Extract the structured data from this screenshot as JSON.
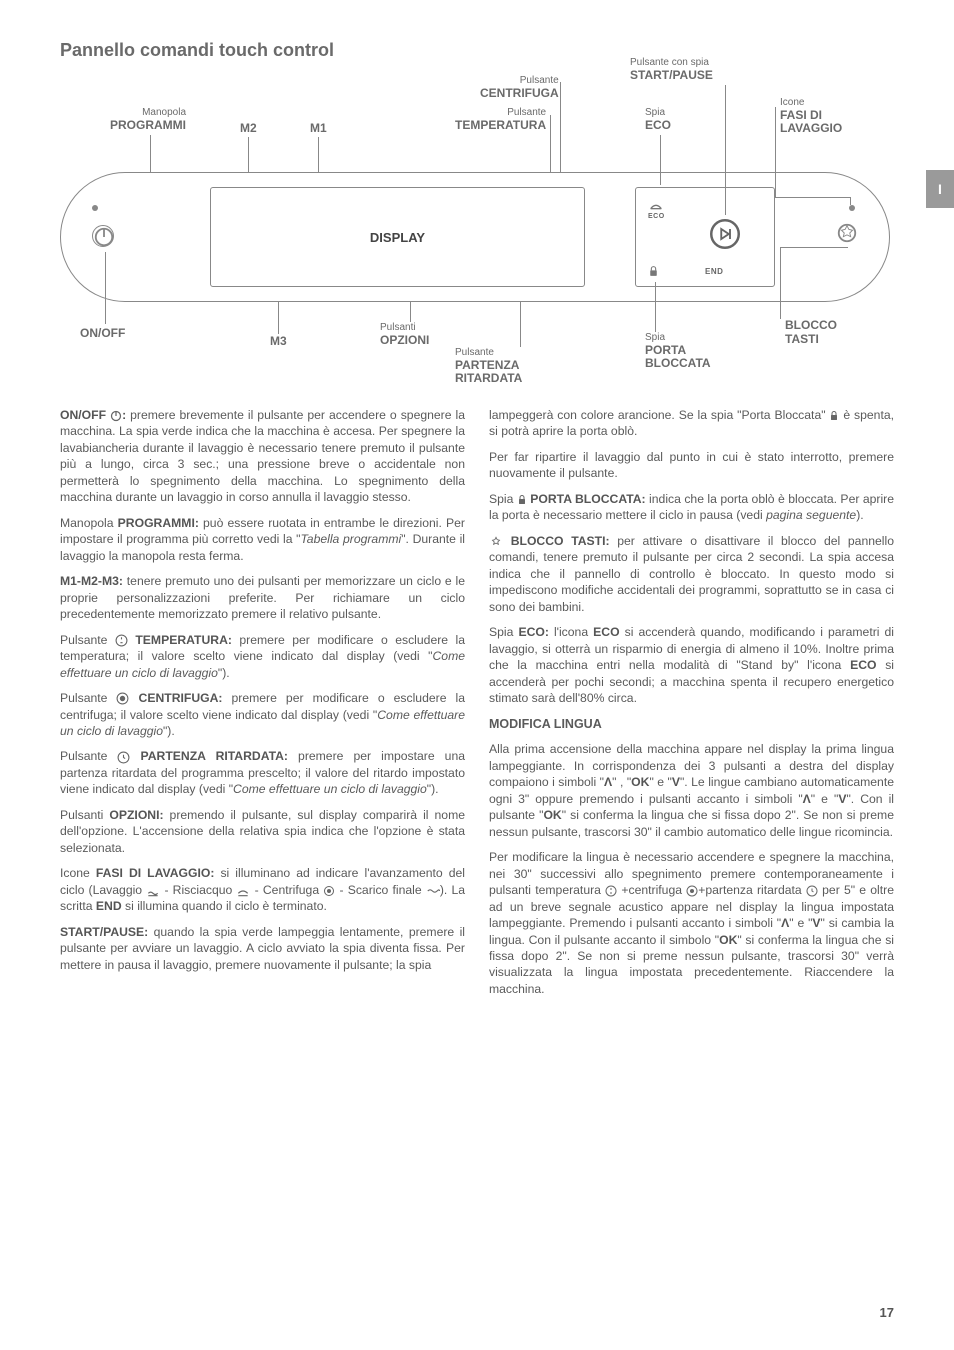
{
  "page": {
    "title": "Pannello comandi touch control",
    "number": "17",
    "tab": "I"
  },
  "diagram": {
    "labels": {
      "programmi_top": "Manopola",
      "programmi": "PROGRAMMI",
      "m1": "M1",
      "m2": "M2",
      "m3": "M3",
      "centrifuga_top": "Pulsante",
      "centrifuga": "CENTRIFUGA",
      "temperatura_top": "Pulsante",
      "temperatura": "TEMPERATURA",
      "display": "DISPLAY",
      "onoff": "ON/OFF",
      "opzioni_top": "Pulsanti",
      "opzioni": "OPZIONI",
      "partenza_top": "Pulsante",
      "partenza": "PARTENZA",
      "ritardata": "RITARDATA",
      "startpause_top": "Pulsante con spia",
      "startpause": "START/PAUSE",
      "eco_top": "Spia",
      "eco": "ECO",
      "fasi_top": "Icone",
      "fasi": "FASI DI",
      "lavaggio": "LAVAGGIO",
      "porta_top": "Spia",
      "porta": "PORTA",
      "bloccata": "BLOCCATA",
      "blocco": "BLOCCO",
      "tasti": "TASTI",
      "end": "END",
      "ecoicon": "ECO"
    }
  },
  "text": {
    "left": [
      {
        "html": "<b>ON/OFF</b> <svg class='inline-icon' width='12' height='12' viewBox='0 0 24 24' fill='none' stroke='#666' stroke-width='2.5'><circle cx='12' cy='12' r='9'/><line x1='12' y1='3' x2='12' y2='12'/></svg><b>:</b> premere brevemente il pulsante per accendere o spegnere la macchina. La spia verde indica che la macchina è accesa. Per spegnere la lavabiancheria durante il lavaggio è necessario tenere premuto il pulsante più a lungo, circa 3 sec.; una pressione breve o accidentale non permetterà lo spegnimento della macchina. Lo spegnimento della macchina durante un lavaggio in corso annulla il lavaggio stesso."
      },
      {
        "html": "Manopola <b>PROGRAMMI:</b> può essere ruotata in entrambe le direzioni. Per impostare il programma più corretto vedi la \"<i>Tabella programmi</i>\". Durante il lavaggio la manopola resta ferma."
      },
      {
        "html": "<b>M1-M2-M3:</b> tenere premuto uno dei pulsanti per memorizzare un ciclo e le proprie personalizzazioni preferite. Per richiamare un ciclo precedentemente memorizzato premere il relativo pulsante."
      },
      {
        "html": "Pulsante <svg class='inline-icon' width='13' height='13' viewBox='0 0 24 24' fill='none' stroke='#666' stroke-width='2'><circle cx='12' cy='12' r='10'/><path d='M12 6v4M10 16h4'/></svg> <b>TEMPERATURA:</b> premere per modificare  o escludere la temperatura; il valore scelto viene indicato dal display (vedi \"<i>Come effettuare un ciclo di lavaggio</i>\")."
      },
      {
        "html": "Pulsante <svg class='inline-icon' width='13' height='13' viewBox='0 0 24 24' fill='none' stroke='#666' stroke-width='2'><circle cx='12' cy='12' r='10'/><circle cx='12' cy='12' r='4' fill='#666'/></svg> <b>CENTRIFUGA:</b> premere per modificare o escludere la centrifuga; il valore scelto viene indicato dal display (vedi \"<i>Come effettuare un ciclo di lavaggio</i>\")."
      },
      {
        "html": "Pulsante <svg class='inline-icon' width='13' height='13' viewBox='0 0 24 24' fill='none' stroke='#666' stroke-width='2'><circle cx='12' cy='12' r='10'/><path d='M12 7v5l3 2'/></svg> <b>PARTENZA RITARDATA:</b> premere per impostare una partenza ritardata  del programma prescelto; il valore del ritardo impostato viene indicato dal display (vedi \"<i>Come effettuare un ciclo di lavaggio</i>\")."
      },
      {
        "html": "Pulsanti <b>OPZIONI:</b> premendo il pulsante, sul display comparirà il nome dell'opzione. L'accensione della relativa spia indica che l'opzione è stata selezionata."
      },
      {
        "html": "Icone <b>FASI DI LAVAGGIO:</b> si illuminano ad indicare l'avanzamento del ciclo (Lavaggio <svg class='inline-icon' width='14' height='12' viewBox='0 0 24 20' fill='none' stroke='#666' stroke-width='2'><path d='M4 14 Q8 10 12 14 T20 14 M4 18h16'/></svg> - Risciacquo <svg class='inline-icon' width='14' height='12' viewBox='0 0 24 20' fill='none' stroke='#666' stroke-width='2'><path d='M4 14 Q12 6 20 14 M4 18h16'/></svg> - Centrifuga <svg class='inline-icon' width='12' height='12' viewBox='0 0 24 24' fill='none' stroke='#666' stroke-width='2'><circle cx='12' cy='12' r='9'/><circle cx='12' cy='12' r='3' fill='#666'/></svg> - Scarico finale <svg class='inline-icon' width='14' height='10' viewBox='0 0 24 16' fill='none' stroke='#666' stroke-width='2'><path d='M3 8 Q7 4 11 8 T19 8 T23 8'/></svg>). La scritta <b>END</b> si illumina quando il ciclo è terminato."
      },
      {
        "html": "<b>START/PAUSE:</b> quando la spia verde lampeggia lentamente, premere il pulsante per avviare un lavaggio. A ciclo avviato  la spia diventa fissa. Per mettere in pausa il lavaggio, premere nuovamente il pulsante; la spia"
      }
    ],
    "right": [
      {
        "html": "lampeggerà con colore arancione. Se la spia \"Porta Bloccata\" <svg class='inline-icon' width='10' height='12' viewBox='0 0 20 24' fill='#666'><rect x='4' y='10' width='12' height='10' rx='1'/><path d='M6 10V7a4 4 0 018 0v3' fill='none' stroke='#666' stroke-width='2'/></svg> è spenta, si potrà aprire la porta oblò."
      },
      {
        "html": "Per far ripartire il lavaggio dal punto in cui è stato interrotto, premere nuovamente il pulsante."
      },
      {
        "html": "Spia <svg class='inline-icon' width='10' height='12' viewBox='0 0 20 24' fill='#666'><rect x='4' y='10' width='12' height='10' rx='1'/><path d='M6 10V7a4 4 0 018 0v3' fill='none' stroke='#666' stroke-width='2'/></svg> <b>PORTA BLOCCATA:</b> indica che la porta oblò è bloccata. Per aprire la porta è necessario mettere il ciclo in pausa (vedi <i>pagina seguente</i>)."
      },
      {
        "html": "<svg class='inline-icon' width='14' height='14' viewBox='0 0 24 24' fill='none' stroke='#666' stroke-width='1.5'><path d='M12 4l2 4 4 1-3 3 1 4-4-2-4 2 1-4-3-3 4-1z'/></svg> <b>BLOCCO TASTI:</b> per attivare o disattivare il blocco del pannello comandi, tenere premuto il pulsante per circa 2 secondi. La spia accesa indica che il pannello di controllo è bloccato. In questo modo si impediscono modifiche accidentali dei programmi, soprattutto se in casa ci sono dei bambini."
      },
      {
        "html": "Spia <b>ECO:</b> l'icona <b>ECO</b> si accenderà quando, modificando i parametri di lavaggio, si otterrà un risparmio di energia di almeno il 10%. Inoltre prima che la macchina entri nella modalità di \"Stand by\" l'icona <b>ECO</b> si accenderà per pochi secondi; a macchina spenta il recupero energetico stimato sarà dell'80% circa."
      },
      {
        "html": "<span class='subhead'>MODIFICA LINGUA</span>"
      },
      {
        "html": "Alla prima accensione della macchina appare nel display la prima lingua lampeggiante. In corrispondenza dei 3 pulsanti a destra del display compaiono i simboli \"<b>Λ</b>\" , \"<b>OK</b>\" e \"<b>V</b>\". Le lingue cambiano automaticamente ogni 3\" oppure premendo i pulsanti accanto i simboli \"<b>Λ</b>\" e \"<b>V</b>\". Con il pulsante \"<b>OK</b>\" si conferma la lingua che si fissa dopo 2\". Se non si preme nessun pulsante, trascorsi 30\" il cambio automatico delle lingue ricomincia."
      },
      {
        "html": "Per modificare la lingua è necessario accendere e spegnere la macchina, nei 30\" successivi allo spegnimento premere contemporaneamente i pulsanti temperatura <svg class='inline-icon' width='12' height='12' viewBox='0 0 24 24' fill='none' stroke='#666' stroke-width='2'><circle cx='12' cy='12' r='10'/><path d='M12 6v4M10 16h4'/></svg> +centrifuga <svg class='inline-icon' width='12' height='12' viewBox='0 0 24 24' fill='none' stroke='#666' stroke-width='2'><circle cx='12' cy='12' r='10'/><circle cx='12' cy='12' r='3' fill='#666'/></svg>+partenza ritardata <svg class='inline-icon' width='12' height='12' viewBox='0 0 24 24' fill='none' stroke='#666' stroke-width='2'><circle cx='12' cy='12' r='10'/><path d='M12 7v5l3 2'/></svg> per 5\" e oltre ad un breve segnale acustico appare nel display la lingua impostata lampeggiante. Premendo i pulsanti accanto i simboli \"<b>Λ</b>\" e \"<b>V</b>\" si cambia la lingua. Con il pulsante accanto il simbolo \"<b>OK</b>\" si conferma la lingua che si fissa dopo 2\". Se non si preme nessun pulsante, trascorsi 30\" verrà visualizzata la lingua impostata precedentemente. Riaccendere la macchina."
      }
    ]
  }
}
